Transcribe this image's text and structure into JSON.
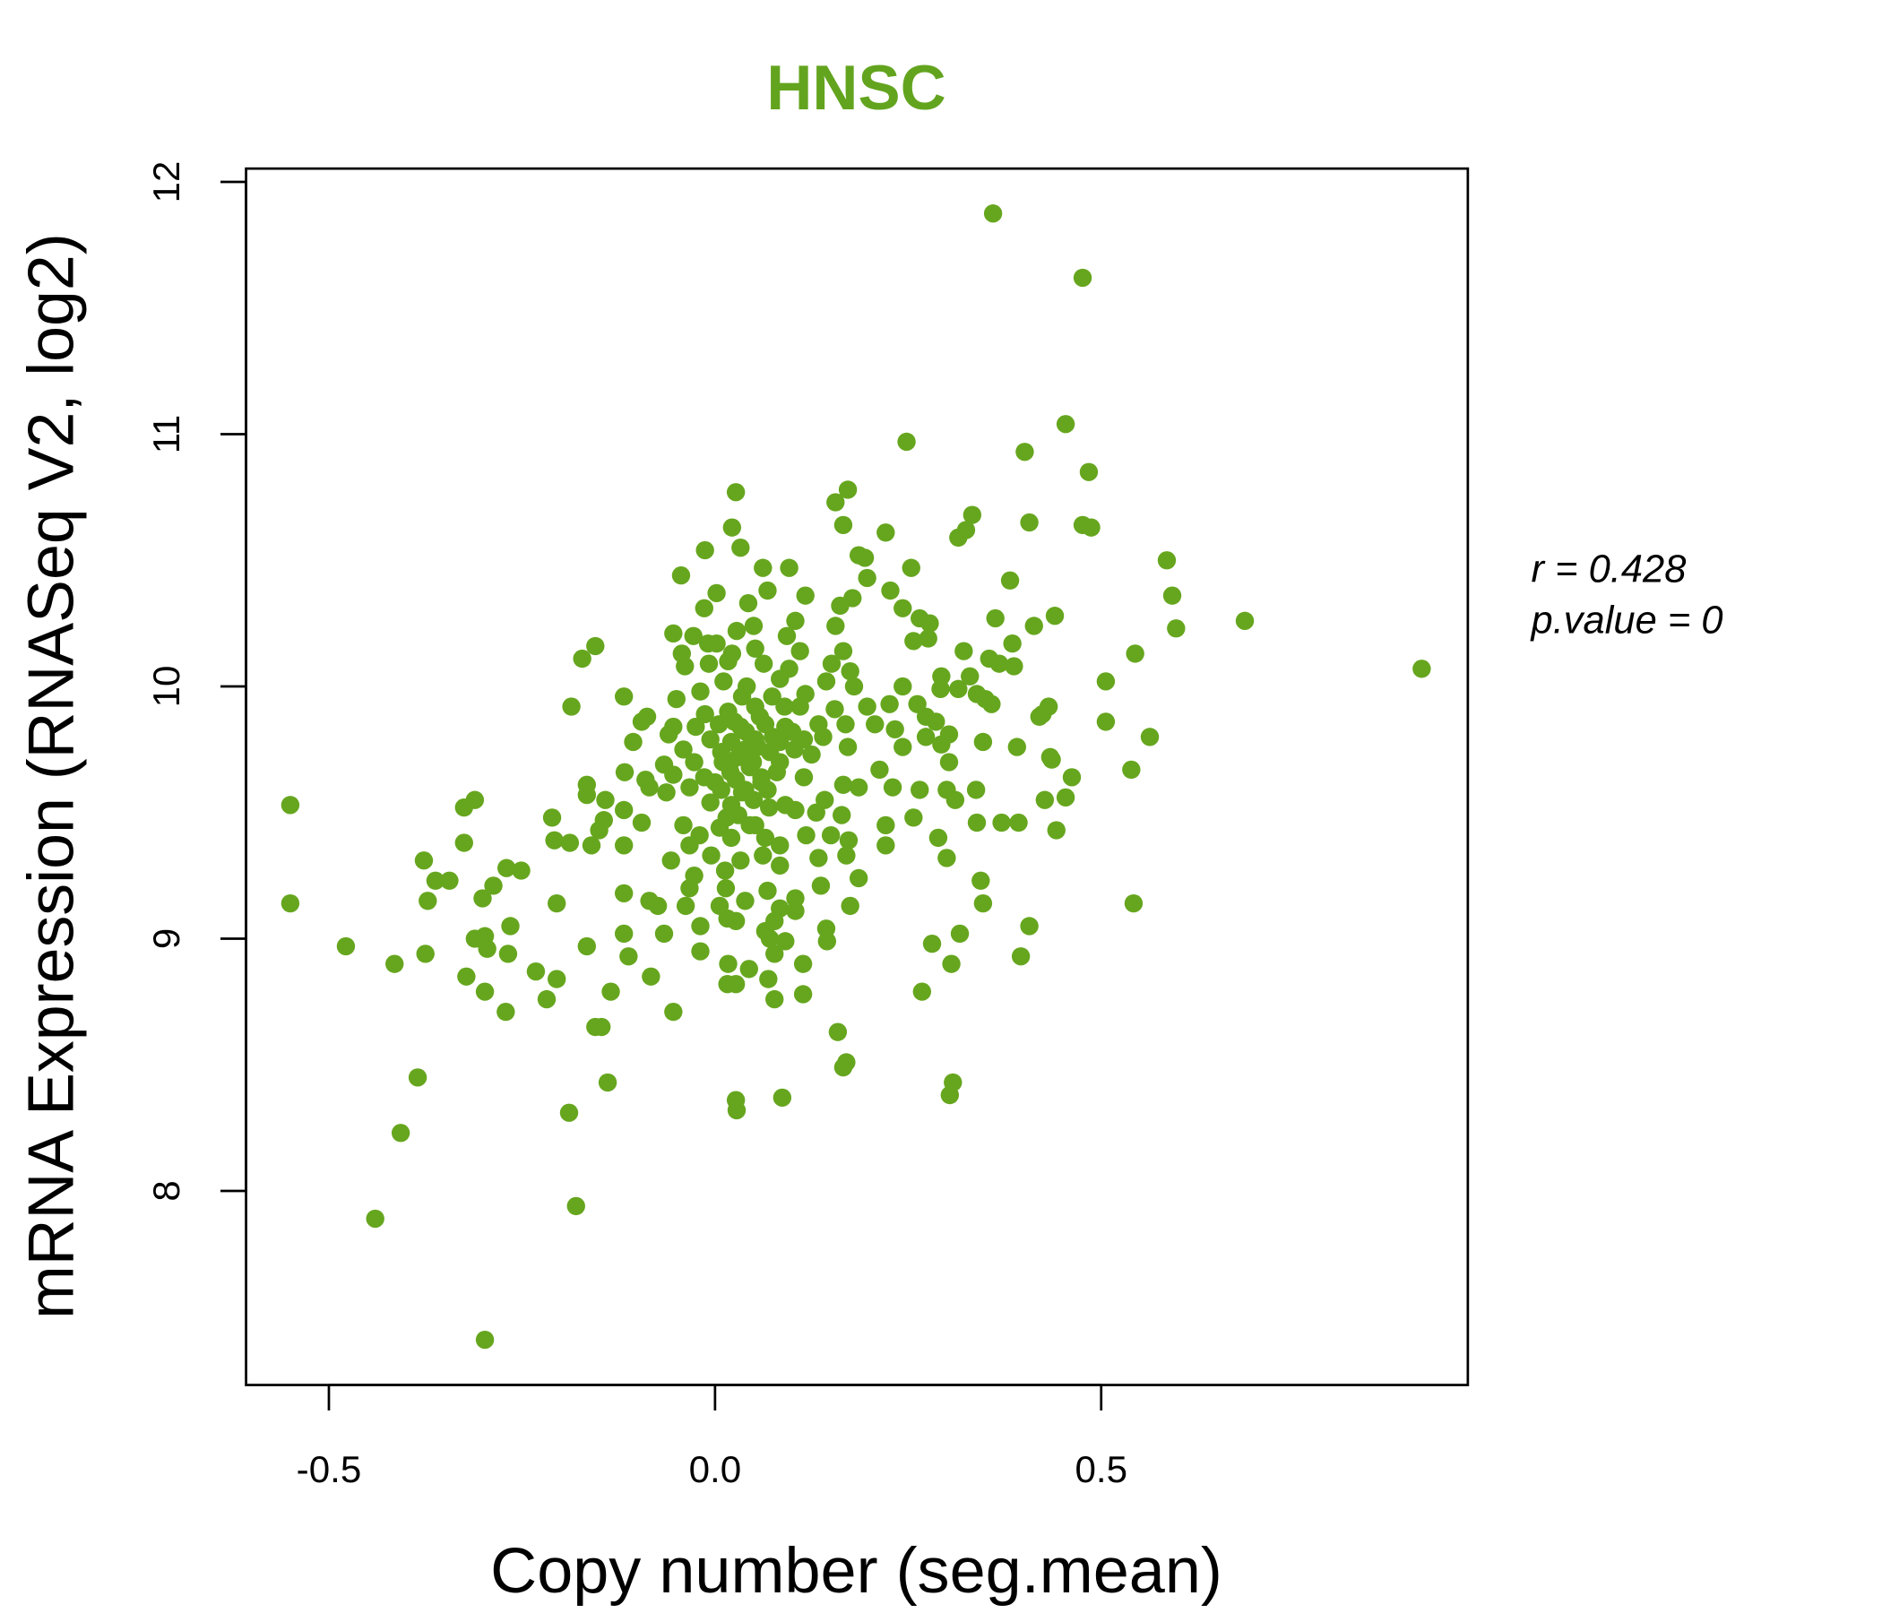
{
  "chart_data": {
    "type": "scatter",
    "title": "HNSC",
    "xlabel": "Copy number (seg.mean)",
    "ylabel": "mRNA Expression (RNASeq V2, log2)",
    "xlim": [
      -0.61,
      0.97
    ],
    "ylim": [
      7.36,
      12.05
    ],
    "xticks": [
      -0.5,
      0.0,
      0.5
    ],
    "xtick_labels": [
      "-0.5",
      "0.0",
      "0.5"
    ],
    "yticks": [
      8,
      9,
      10,
      11,
      12
    ],
    "ytick_labels": [
      "8",
      "9",
      "10",
      "11",
      "12"
    ],
    "grid": false,
    "annotation": {
      "r_label": "r = 0.428",
      "p_label": "p.value = 0"
    },
    "colors": {
      "title": "#63a41f",
      "points": "#66a61e",
      "axis": "#000000"
    },
    "points": [
      [
        0.36,
        11.875
      ],
      [
        0.476,
        11.62
      ],
      [
        0.248,
        10.97
      ],
      [
        0.454,
        11.04
      ],
      [
        0.401,
        10.93
      ],
      [
        0.484,
        10.85
      ],
      [
        0.172,
        10.78
      ],
      [
        0.156,
        10.73
      ],
      [
        0.027,
        10.77
      ],
      [
        0.333,
        10.68
      ],
      [
        0.407,
        10.65
      ],
      [
        0.476,
        10.64
      ],
      [
        0.487,
        10.63
      ],
      [
        0.022,
        10.63
      ],
      [
        0.166,
        10.64
      ],
      [
        0.221,
        10.61
      ],
      [
        0.325,
        10.62
      ],
      [
        0.315,
        10.59
      ],
      [
        -0.013,
        10.54
      ],
      [
        0.033,
        10.55
      ],
      [
        0.186,
        10.52
      ],
      [
        0.194,
        10.51
      ],
      [
        0.585,
        10.5
      ],
      [
        0.254,
        10.47
      ],
      [
        0.062,
        10.47
      ],
      [
        0.096,
        10.47
      ],
      [
        -0.044,
        10.44
      ],
      [
        0.382,
        10.42
      ],
      [
        0.197,
        10.43
      ],
      [
        0.592,
        10.36
      ],
      [
        0.117,
        10.36
      ],
      [
        0.227,
        10.38
      ],
      [
        0.002,
        10.37
      ],
      [
        0.068,
        10.38
      ],
      [
        0.178,
        10.35
      ],
      [
        0.162,
        10.32
      ],
      [
        0.043,
        10.33
      ],
      [
        -0.014,
        10.31
      ],
      [
        0.44,
        10.28
      ],
      [
        0.363,
        10.27
      ],
      [
        0.243,
        10.31
      ],
      [
        0.265,
        10.27
      ],
      [
        0.278,
        10.25
      ],
      [
        0.686,
        10.26
      ],
      [
        0.597,
        10.23
      ],
      [
        0.413,
        10.24
      ],
      [
        0.156,
        10.24
      ],
      [
        0.104,
        10.26
      ],
      [
        0.05,
        10.24
      ],
      [
        -0.054,
        10.21
      ],
      [
        -0.028,
        10.2
      ],
      [
        -0.009,
        10.17
      ],
      [
        0.028,
        10.22
      ],
      [
        0.093,
        10.2
      ],
      [
        -0.155,
        10.16
      ],
      [
        0.276,
        10.19
      ],
      [
        0.257,
        10.18
      ],
      [
        0.385,
        10.17
      ],
      [
        0.544,
        10.13
      ],
      [
        -0.172,
        10.11
      ],
      [
        -0.043,
        10.13
      ],
      [
        0.002,
        10.17
      ],
      [
        0.022,
        10.13
      ],
      [
        0.052,
        10.15
      ],
      [
        0.11,
        10.14
      ],
      [
        0.166,
        10.14
      ],
      [
        0.322,
        10.14
      ],
      [
        0.355,
        10.11
      ],
      [
        0.368,
        10.09
      ],
      [
        0.387,
        10.08
      ],
      [
        -0.039,
        10.08
      ],
      [
        -0.008,
        10.09
      ],
      [
        0.017,
        10.1
      ],
      [
        0.063,
        10.09
      ],
      [
        0.096,
        10.07
      ],
      [
        0.151,
        10.09
      ],
      [
        0.175,
        10.06
      ],
      [
        0.915,
        10.07
      ],
      [
        0.293,
        10.04
      ],
      [
        0.33,
        10.04
      ],
      [
        0.506,
        10.02
      ],
      [
        0.011,
        10.02
      ],
      [
        0.041,
        10.0
      ],
      [
        0.084,
        10.03
      ],
      [
        0.144,
        10.02
      ],
      [
        0.18,
        10.0
      ],
      [
        0.243,
        10.0
      ],
      [
        0.292,
        9.99
      ],
      [
        0.315,
        9.99
      ],
      [
        0.339,
        9.97
      ],
      [
        -0.019,
        9.98
      ],
      [
        -0.118,
        9.96
      ],
      [
        -0.05,
        9.95
      ],
      [
        0.074,
        9.96
      ],
      [
        0.117,
        9.97
      ],
      [
        0.35,
        9.95
      ],
      [
        0.358,
        9.93
      ],
      [
        0.262,
        9.93
      ],
      [
        0.226,
        9.93
      ],
      [
        -0.186,
        9.92
      ],
      [
        0.432,
        9.92
      ],
      [
        0.424,
        9.89
      ],
      [
        0.42,
        9.88
      ],
      [
        0.197,
        9.92
      ],
      [
        0.155,
        9.91
      ],
      [
        0.11,
        9.92
      ],
      [
        0.052,
        9.92
      ],
      [
        0.017,
        9.9
      ],
      [
        -0.013,
        9.89
      ],
      [
        -0.088,
        9.88
      ],
      [
        -0.095,
        9.86
      ],
      [
        0.273,
        9.88
      ],
      [
        0.286,
        9.86
      ],
      [
        0.506,
        9.86
      ],
      [
        -0.054,
        9.84
      ],
      [
        -0.025,
        9.84
      ],
      [
        0.005,
        9.85
      ],
      [
        0.033,
        9.84
      ],
      [
        0.065,
        9.85
      ],
      [
        0.091,
        9.84
      ],
      [
        0.134,
        9.85
      ],
      [
        0.169,
        9.85
      ],
      [
        0.207,
        9.85
      ],
      [
        0.233,
        9.83
      ],
      [
        0.303,
        9.81
      ],
      [
        0.273,
        9.8
      ],
      [
        0.563,
        9.8
      ],
      [
        -0.06,
        9.81
      ],
      [
        -0.106,
        9.78
      ],
      [
        -0.006,
        9.79
      ],
      [
        0.021,
        9.78
      ],
      [
        0.052,
        9.79
      ],
      [
        0.084,
        9.78
      ],
      [
        0.115,
        9.79
      ],
      [
        0.14,
        9.8
      ],
      [
        0.347,
        9.78
      ],
      [
        0.293,
        9.77
      ],
      [
        0.243,
        9.76
      ],
      [
        0.172,
        9.76
      ],
      [
        0.391,
        9.76
      ],
      [
        -0.041,
        9.75
      ],
      [
        0.008,
        9.74
      ],
      [
        0.039,
        9.75
      ],
      [
        0.071,
        9.74
      ],
      [
        0.103,
        9.75
      ],
      [
        0.125,
        9.73
      ],
      [
        0.434,
        9.72
      ],
      [
        0.436,
        9.71
      ],
      [
        -0.027,
        9.7
      ],
      [
        0.019,
        9.69
      ],
      [
        0.049,
        9.7
      ],
      [
        0.084,
        9.7
      ],
      [
        -0.066,
        9.69
      ],
      [
        0.303,
        9.7
      ],
      [
        0.213,
        9.67
      ],
      [
        0.539,
        9.67
      ],
      [
        -0.117,
        9.66
      ],
      [
        -0.054,
        9.65
      ],
      [
        -0.014,
        9.64
      ],
      [
        0.027,
        9.63
      ],
      [
        0.06,
        9.64
      ],
      [
        0.115,
        9.64
      ],
      [
        0.462,
        9.64
      ],
      [
        -0.09,
        9.63
      ],
      [
        -0.166,
        9.61
      ],
      [
        -0.085,
        9.6
      ],
      [
        -0.033,
        9.6
      ],
      [
        0.008,
        9.59
      ],
      [
        0.039,
        9.59
      ],
      [
        0.068,
        9.59
      ],
      [
        0.166,
        9.61
      ],
      [
        0.186,
        9.6
      ],
      [
        0.23,
        9.6
      ],
      [
        0.265,
        9.59
      ],
      [
        0.338,
        9.59
      ],
      [
        0.3,
        9.59
      ],
      [
        -0.063,
        9.58
      ],
      [
        -0.166,
        9.57
      ],
      [
        -0.55,
        9.53
      ],
      [
        -0.311,
        9.55
      ],
      [
        -0.142,
        9.55
      ],
      [
        -0.006,
        9.54
      ],
      [
        0.021,
        9.53
      ],
      [
        0.091,
        9.53
      ],
      [
        0.142,
        9.55
      ],
      [
        0.311,
        9.55
      ],
      [
        0.427,
        9.55
      ],
      [
        0.454,
        9.56
      ],
      [
        -0.325,
        9.52
      ],
      [
        -0.118,
        9.51
      ],
      [
        0.03,
        9.49
      ],
      [
        0.104,
        9.51
      ],
      [
        0.131,
        9.5
      ],
      [
        0.164,
        9.49
      ],
      [
        -0.211,
        9.48
      ],
      [
        0.257,
        9.48
      ],
      [
        -0.144,
        9.47
      ],
      [
        -0.095,
        9.46
      ],
      [
        0.339,
        9.46
      ],
      [
        0.371,
        9.46
      ],
      [
        0.393,
        9.46
      ],
      [
        -0.041,
        9.45
      ],
      [
        0.006,
        9.44
      ],
      [
        0.052,
        9.45
      ],
      [
        0.221,
        9.45
      ],
      [
        0.442,
        9.43
      ],
      [
        -0.15,
        9.43
      ],
      [
        -0.02,
        9.41
      ],
      [
        0.021,
        9.4
      ],
      [
        0.065,
        9.4
      ],
      [
        0.118,
        9.41
      ],
      [
        0.15,
        9.41
      ],
      [
        0.289,
        9.4
      ],
      [
        0.173,
        9.39
      ],
      [
        -0.325,
        9.38
      ],
      [
        -0.208,
        9.39
      ],
      [
        -0.188,
        9.38
      ],
      [
        -0.16,
        9.37
      ],
      [
        -0.118,
        9.37
      ],
      [
        -0.033,
        9.37
      ],
      [
        0.084,
        9.37
      ],
      [
        0.221,
        9.37
      ],
      [
        -0.057,
        9.31
      ],
      [
        -0.005,
        9.33
      ],
      [
        0.033,
        9.31
      ],
      [
        0.062,
        9.33
      ],
      [
        0.134,
        9.32
      ],
      [
        0.17,
        9.33
      ],
      [
        0.3,
        9.32
      ],
      [
        -0.377,
        9.31
      ],
      [
        -0.27,
        9.28
      ],
      [
        -0.251,
        9.27
      ],
      [
        0.084,
        9.29
      ],
      [
        -0.027,
        9.25
      ],
      [
        0.013,
        9.27
      ],
      [
        -0.362,
        9.23
      ],
      [
        -0.344,
        9.23
      ],
      [
        0.137,
        9.21
      ],
      [
        0.186,
        9.24
      ],
      [
        0.344,
        9.23
      ],
      [
        -0.287,
        9.21
      ],
      [
        -0.033,
        9.2
      ],
      [
        0.014,
        9.2
      ],
      [
        -0.118,
        9.18
      ],
      [
        0.068,
        9.19
      ],
      [
        0.104,
        9.16
      ],
      [
        -0.301,
        9.16
      ],
      [
        -0.372,
        9.15
      ],
      [
        -0.55,
        9.14
      ],
      [
        -0.205,
        9.14
      ],
      [
        -0.085,
        9.15
      ],
      [
        0.039,
        9.15
      ],
      [
        0.347,
        9.14
      ],
      [
        0.542,
        9.14
      ],
      [
        -0.074,
        9.13
      ],
      [
        -0.038,
        9.13
      ],
      [
        0.006,
        9.13
      ],
      [
        0.084,
        9.12
      ],
      [
        0.175,
        9.13
      ],
      [
        0.104,
        9.11
      ],
      [
        0.027,
        9.07
      ],
      [
        0.016,
        9.08
      ],
      [
        0.077,
        9.07
      ],
      [
        -0.265,
        9.05
      ],
      [
        -0.019,
        9.05
      ],
      [
        0.407,
        9.05
      ],
      [
        0.144,
        9.04
      ],
      [
        -0.118,
        9.02
      ],
      [
        -0.066,
        9.02
      ],
      [
        0.065,
        9.03
      ],
      [
        0.317,
        9.02
      ],
      [
        -0.298,
        9.01
      ],
      [
        -0.311,
        9.0
      ],
      [
        0.071,
        9.0
      ],
      [
        0.091,
        8.99
      ],
      [
        -0.478,
        8.97
      ],
      [
        -0.166,
        8.97
      ],
      [
        -0.295,
        8.96
      ],
      [
        0.145,
        8.99
      ],
      [
        0.281,
        8.98
      ],
      [
        -0.019,
        8.95
      ],
      [
        -0.375,
        8.94
      ],
      [
        -0.268,
        8.94
      ],
      [
        -0.112,
        8.93
      ],
      [
        0.077,
        8.94
      ],
      [
        0.396,
        8.93
      ],
      [
        -0.415,
        8.9
      ],
      [
        0.017,
        8.9
      ],
      [
        0.114,
        8.9
      ],
      [
        0.306,
        8.9
      ],
      [
        0.044,
        8.88
      ],
      [
        -0.232,
        8.87
      ],
      [
        -0.322,
        8.85
      ],
      [
        -0.205,
        8.84
      ],
      [
        -0.083,
        8.85
      ],
      [
        0.016,
        8.82
      ],
      [
        0.027,
        8.82
      ],
      [
        0.069,
        8.84
      ],
      [
        -0.298,
        8.79
      ],
      [
        -0.135,
        8.79
      ],
      [
        -0.218,
        8.76
      ],
      [
        0.077,
        8.76
      ],
      [
        0.114,
        8.78
      ],
      [
        0.268,
        8.79
      ],
      [
        -0.271,
        8.71
      ],
      [
        -0.054,
        8.71
      ],
      [
        -0.155,
        8.65
      ],
      [
        -0.147,
        8.65
      ],
      [
        0.159,
        8.63
      ],
      [
        0.166,
        8.49
      ],
      [
        0.17,
        8.51
      ],
      [
        -0.385,
        8.45
      ],
      [
        -0.139,
        8.43
      ],
      [
        0.308,
        8.43
      ],
      [
        0.304,
        8.38
      ],
      [
        0.027,
        8.36
      ],
      [
        0.028,
        8.32
      ],
      [
        0.087,
        8.37
      ],
      [
        -0.189,
        8.31
      ],
      [
        -0.407,
        8.23
      ],
      [
        -0.18,
        7.94
      ],
      [
        -0.44,
        7.89
      ],
      [
        -0.298,
        7.41
      ],
      [
        0.03,
        9.72
      ],
      [
        0.045,
        9.68
      ],
      [
        0.055,
        9.76
      ],
      [
        0.04,
        9.82
      ],
      [
        0.02,
        9.66
      ],
      [
        0.06,
        9.62
      ],
      [
        0.075,
        9.8
      ],
      [
        0.035,
        9.58
      ],
      [
        0.05,
        9.55
      ],
      [
        0.01,
        9.7
      ],
      [
        0.08,
        9.66
      ],
      [
        0.025,
        9.86
      ],
      [
        0.058,
        9.88
      ],
      [
        0.0,
        9.62
      ],
      [
        0.015,
        9.48
      ],
      [
        0.045,
        9.45
      ],
      [
        0.07,
        9.52
      ],
      [
        0.09,
        9.92
      ],
      [
        0.1,
        9.82
      ],
      [
        0.035,
        9.96
      ]
    ]
  }
}
